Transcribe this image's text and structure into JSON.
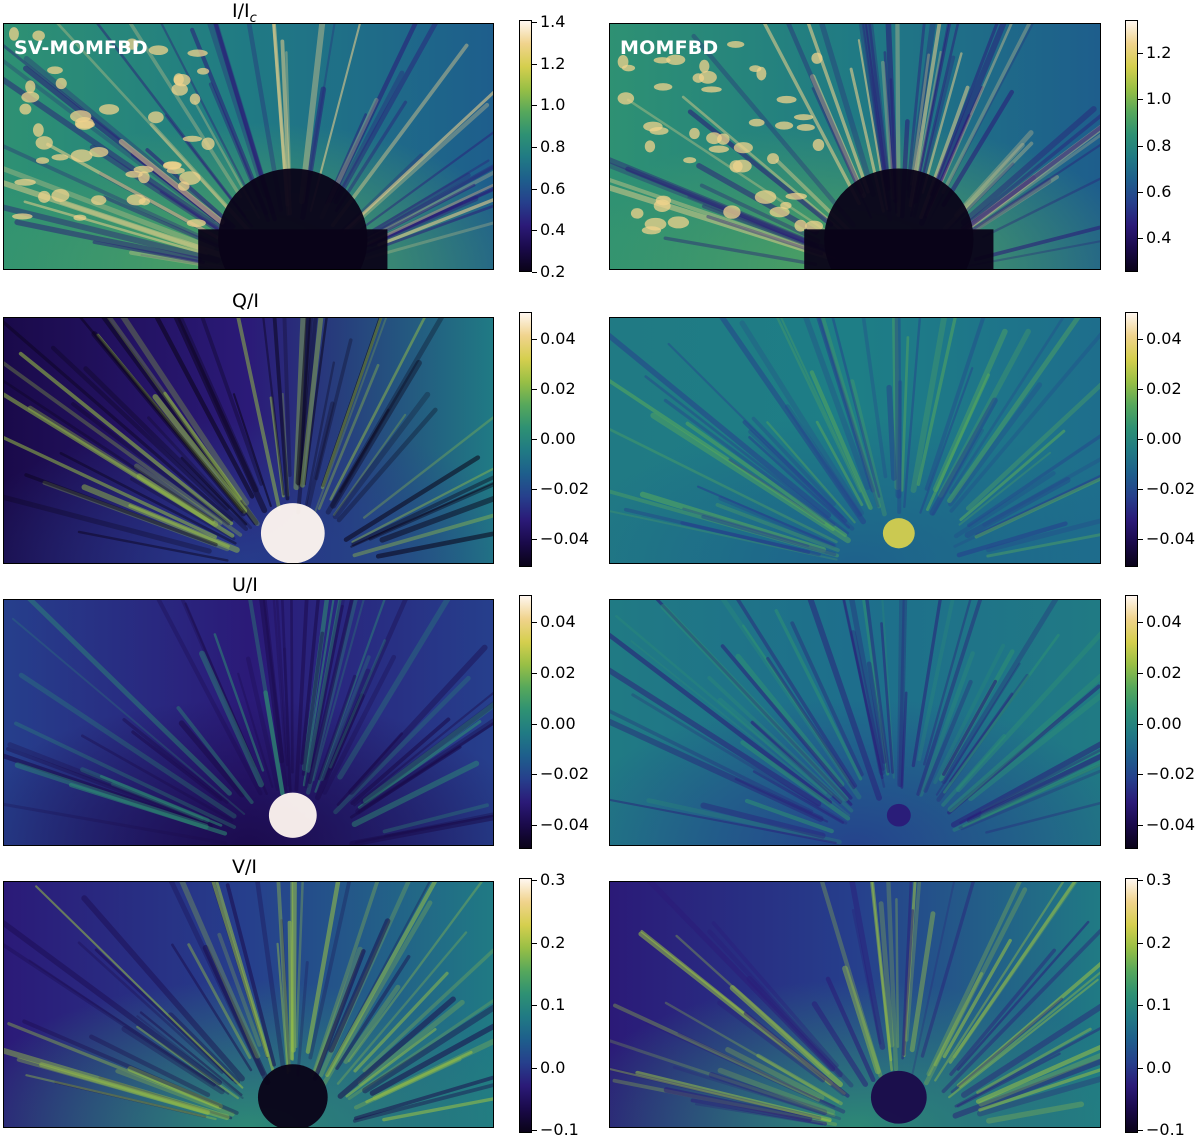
{
  "colormap": {
    "name": "batlow-like",
    "stops": [
      "#0a0318",
      "#1a0a4a",
      "#2b1a78",
      "#263f8c",
      "#1e5e8c",
      "#207a84",
      "#2e9173",
      "#56a85b",
      "#98bf45",
      "#d5cf4e",
      "#f0d38c",
      "#fff7f0"
    ]
  },
  "columns": [
    {
      "label": "SV-MOMFBD"
    },
    {
      "label": "MOMFBD"
    }
  ],
  "rows": [
    {
      "title": "I/I",
      "title_sub": "c",
      "colorbars": [
        {
          "ticks": [
            "1.4",
            "1.2",
            "1.0",
            "0.8",
            "0.6",
            "0.4",
            "0.2"
          ]
        },
        {
          "ticks": [
            "1.2",
            "1.0",
            "0.8",
            "0.6",
            "0.4"
          ]
        }
      ]
    },
    {
      "title": "Q/I",
      "colorbars": [
        {
          "ticks": [
            "0.04",
            "0.02",
            "0.00",
            "−0.02",
            "−0.04"
          ]
        },
        {
          "ticks": [
            "0.04",
            "0.02",
            "0.00",
            "−0.02",
            "−0.04"
          ]
        }
      ]
    },
    {
      "title": "U/I",
      "colorbars": [
        {
          "ticks": [
            "0.04",
            "0.02",
            "0.00",
            "−0.02",
            "−0.04"
          ]
        },
        {
          "ticks": [
            "0.04",
            "0.02",
            "0.00",
            "−0.02",
            "−0.04"
          ]
        }
      ]
    },
    {
      "title": "V/I",
      "colorbars": [
        {
          "ticks": [
            "0.3",
            "0.2",
            "0.1",
            "0.0",
            "−0.1"
          ]
        },
        {
          "ticks": [
            "0.3",
            "0.2",
            "0.1",
            "0.0",
            "−0.1"
          ]
        }
      ]
    }
  ]
}
